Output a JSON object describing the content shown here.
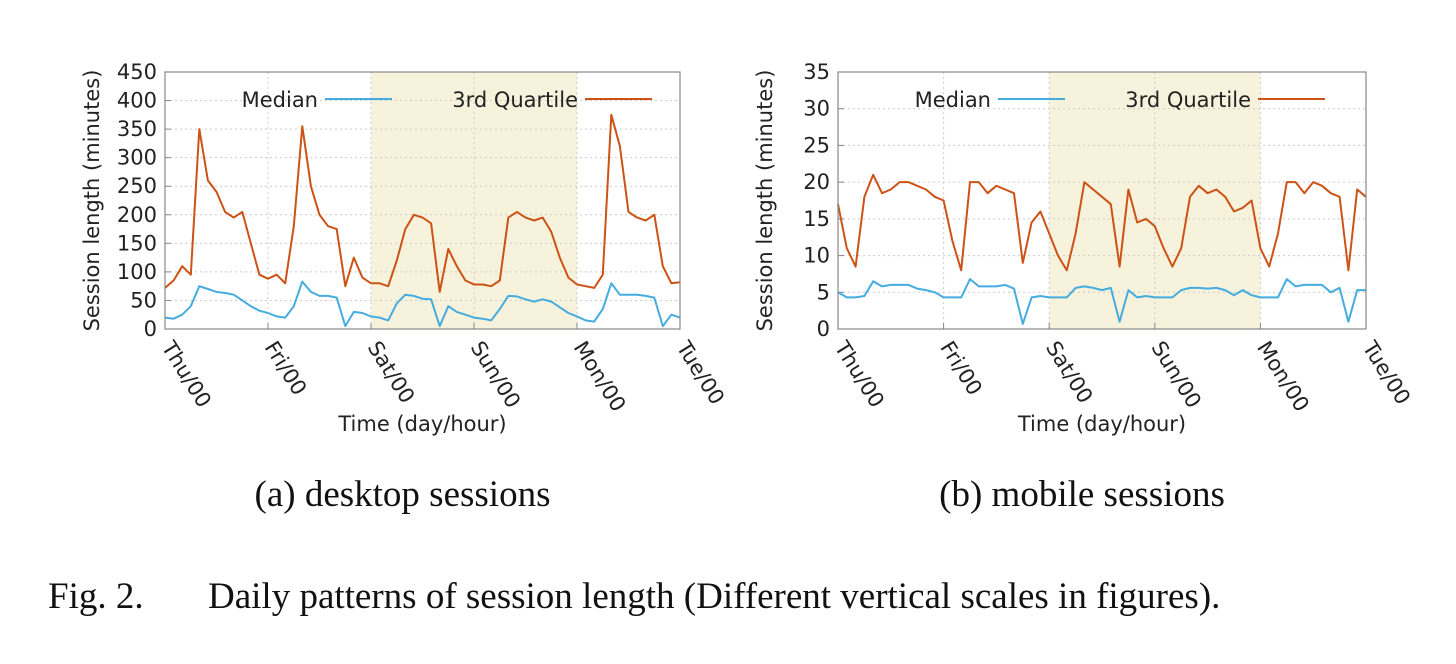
{
  "chart_data": [
    {
      "type": "line",
      "caption": "(a) desktop sessions",
      "xlabel": "Time (day/hour)",
      "ylabel": "Session length (minutes)",
      "xlim": [
        0,
        120
      ],
      "ylim": [
        0,
        450
      ],
      "xticks": [
        {
          "value": 0,
          "label": "Thu/00"
        },
        {
          "value": 24,
          "label": "Fri/00"
        },
        {
          "value": 48,
          "label": "Sat/00"
        },
        {
          "value": 72,
          "label": "Sun/00"
        },
        {
          "value": 96,
          "label": "Mon/00"
        },
        {
          "value": 120,
          "label": "Tue/00"
        }
      ],
      "yticks": [
        0,
        50,
        100,
        150,
        200,
        250,
        300,
        350,
        400,
        450
      ],
      "grid": true,
      "legend": "top",
      "shaded_range": [
        48,
        96
      ],
      "shade_color": "#f7f2dc",
      "x": [
        0,
        2,
        4,
        6,
        8,
        10,
        12,
        14,
        16,
        18,
        20,
        22,
        24,
        26,
        28,
        30,
        32,
        34,
        36,
        38,
        40,
        42,
        44,
        46,
        48,
        50,
        52,
        54,
        56,
        58,
        60,
        62,
        64,
        66,
        68,
        70,
        72,
        74,
        76,
        78,
        80,
        82,
        84,
        86,
        88,
        90,
        92,
        94,
        96,
        98,
        100,
        102,
        104,
        106,
        108,
        110,
        112,
        114,
        116,
        118,
        120
      ],
      "series": [
        {
          "name": "Median",
          "color": "#45ace0",
          "values": [
            20,
            18,
            25,
            40,
            75,
            70,
            65,
            63,
            60,
            50,
            40,
            32,
            28,
            22,
            20,
            40,
            83,
            65,
            58,
            58,
            55,
            5,
            30,
            28,
            22,
            20,
            15,
            45,
            60,
            58,
            53,
            52,
            5,
            40,
            30,
            25,
            20,
            18,
            15,
            35,
            58,
            57,
            52,
            48,
            52,
            48,
            38,
            28,
            22,
            15,
            13,
            35,
            80,
            60,
            60,
            60,
            58,
            55,
            5,
            25,
            20
          ]
        },
        {
          "name": "3rd Quartile",
          "color": "#cc5215",
          "values": [
            72,
            85,
            110,
            95,
            350,
            260,
            240,
            205,
            195,
            205,
            150,
            95,
            88,
            95,
            80,
            180,
            355,
            250,
            200,
            180,
            175,
            75,
            125,
            90,
            80,
            80,
            75,
            120,
            175,
            200,
            195,
            185,
            65,
            140,
            110,
            85,
            78,
            78,
            75,
            85,
            195,
            205,
            195,
            190,
            195,
            170,
            125,
            90,
            78,
            75,
            72,
            95,
            375,
            320,
            205,
            195,
            190,
            200,
            110,
            80,
            82
          ]
        }
      ]
    },
    {
      "type": "line",
      "caption": "(b) mobile sessions",
      "xlabel": "Time (day/hour)",
      "ylabel": "Session length (minutes)",
      "xlim": [
        0,
        120
      ],
      "ylim": [
        0,
        35
      ],
      "xticks": [
        {
          "value": 0,
          "label": "Thu/00"
        },
        {
          "value": 24,
          "label": "Fri/00"
        },
        {
          "value": 48,
          "label": "Sat/00"
        },
        {
          "value": 72,
          "label": "Sun/00"
        },
        {
          "value": 96,
          "label": "Mon/00"
        },
        {
          "value": 120,
          "label": "Tue/00"
        }
      ],
      "yticks": [
        0,
        5,
        10,
        15,
        20,
        25,
        30,
        35
      ],
      "grid": true,
      "legend": "top",
      "shaded_range": [
        48,
        96
      ],
      "shade_color": "#f7f2dc",
      "x": [
        0,
        2,
        4,
        6,
        8,
        10,
        12,
        14,
        16,
        18,
        20,
        22,
        24,
        26,
        28,
        30,
        32,
        34,
        36,
        38,
        40,
        42,
        44,
        46,
        48,
        50,
        52,
        54,
        56,
        58,
        60,
        62,
        64,
        66,
        68,
        70,
        72,
        74,
        76,
        78,
        80,
        82,
        84,
        86,
        88,
        90,
        92,
        94,
        96,
        98,
        100,
        102,
        104,
        106,
        108,
        110,
        112,
        114,
        116,
        118,
        120
      ],
      "series": [
        {
          "name": "Median",
          "color": "#45ace0",
          "values": [
            5,
            4.3,
            4.3,
            4.5,
            6.5,
            5.8,
            6,
            6,
            6,
            5.5,
            5.3,
            5,
            4.3,
            4.3,
            4.3,
            6.8,
            5.8,
            5.8,
            5.8,
            6,
            5.5,
            0.7,
            4.3,
            4.5,
            4.3,
            4.3,
            4.3,
            5.6,
            5.8,
            5.6,
            5.3,
            5.6,
            1,
            5.3,
            4.3,
            4.5,
            4.3,
            4.3,
            4.3,
            5.3,
            5.6,
            5.6,
            5.5,
            5.6,
            5.3,
            4.6,
            5.3,
            4.6,
            4.3,
            4.3,
            4.3,
            6.8,
            5.8,
            6,
            6,
            6,
            5,
            5.6,
            1,
            5.3,
            5.3
          ]
        },
        {
          "name": "3rd Quartile",
          "color": "#cc5215",
          "values": [
            17,
            11,
            8.5,
            18,
            21,
            18.5,
            19,
            20,
            20,
            19.5,
            19,
            18,
            17.5,
            12,
            8,
            20,
            20,
            18.5,
            19.5,
            19,
            18.5,
            9,
            14.5,
            16,
            13,
            10,
            8,
            13,
            20,
            19,
            18,
            17,
            8.5,
            19,
            14.5,
            15,
            14,
            11,
            8.5,
            11,
            18,
            19.5,
            18.5,
            19,
            18,
            16,
            16.5,
            17.5,
            11,
            8.5,
            13,
            20,
            20,
            18.5,
            20,
            19.5,
            18.5,
            18,
            8,
            19,
            18
          ]
        }
      ]
    }
  ],
  "figure_label": "Fig. 2.",
  "figure_caption": "Daily patterns of session length (Different vertical scales in figures)."
}
